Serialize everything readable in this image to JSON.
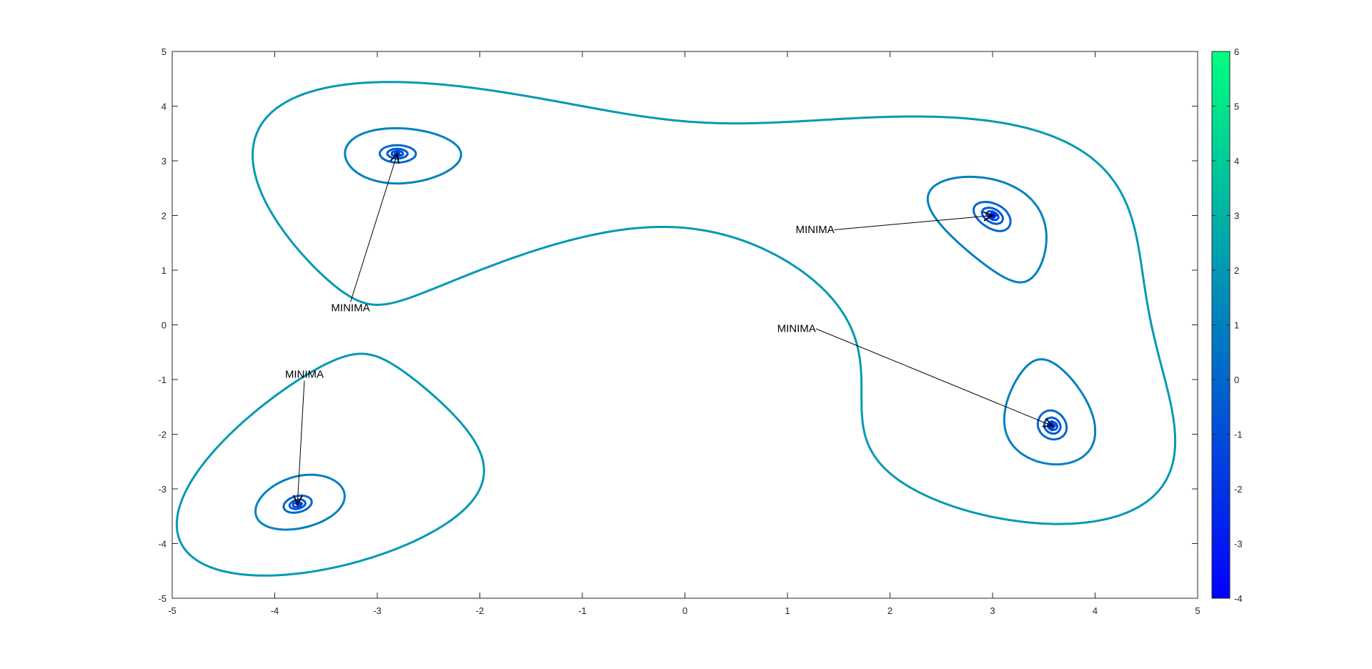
{
  "chart_data": {
    "type": "contour",
    "title": "",
    "xlabel": "",
    "ylabel": "",
    "xlim": [
      -5,
      5
    ],
    "ylim": [
      -5,
      5
    ],
    "x_ticks": [
      "-5",
      "-4",
      "-3",
      "-2",
      "-1",
      "0",
      "1",
      "2",
      "3",
      "4",
      "5"
    ],
    "y_ticks": [
      "-5",
      "-4",
      "-3",
      "-2",
      "-1",
      "0",
      "1",
      "2",
      "3",
      "4",
      "5"
    ],
    "grid": false,
    "colormap": "winter",
    "colormap_colors": [
      "#0000ff",
      "#00ff80"
    ],
    "colorbar": {
      "limits": [
        -4,
        6
      ],
      "tick_labels": [
        "6",
        "5",
        "4",
        "3",
        "2",
        "1",
        "0",
        "-1",
        "-2",
        "-3",
        "-4"
      ],
      "placement": "right"
    },
    "minima": [
      {
        "x": 3.0,
        "y": 2.0
      },
      {
        "x": -2.805,
        "y": 3.131
      },
      {
        "x": -3.779,
        "y": -3.283
      },
      {
        "x": 3.584,
        "y": -1.848
      }
    ],
    "annotations": [
      {
        "text": "MINIMA",
        "text_x": -3.45,
        "text_y": 0.25,
        "target_x": -2.805,
        "target_y": 3.131
      },
      {
        "text": "MINIMA",
        "text_x": -3.9,
        "text_y": -0.97,
        "target_x": -3.779,
        "target_y": -3.283
      },
      {
        "text": "MINIMA",
        "text_x": 1.08,
        "text_y": 1.68,
        "target_x": 3.0,
        "target_y": 2.0
      },
      {
        "text": "MINIMA",
        "text_x": 0.9,
        "text_y": -0.13,
        "target_x": 3.584,
        "target_y": -1.848
      }
    ]
  }
}
